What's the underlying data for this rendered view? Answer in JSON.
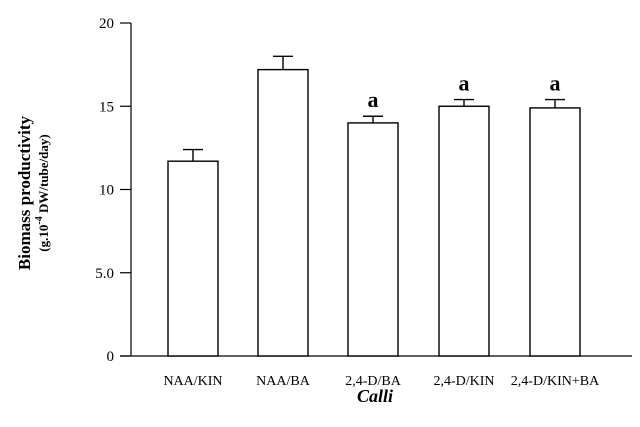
{
  "chart_data": {
    "type": "bar",
    "title": "",
    "xlabel": "Calli",
    "ylabel": "Biomass productivity",
    "ylabel_sub_prefix": "(g.10",
    "ylabel_sub_exp": "-4",
    "ylabel_sub_suffix": " DW/tube/day)",
    "ylim": [
      0,
      20
    ],
    "yticks": [
      {
        "value": 0,
        "label": "0"
      },
      {
        "value": 5,
        "label": "5.0"
      },
      {
        "value": 10,
        "label": "10"
      },
      {
        "value": 15,
        "label": "15"
      },
      {
        "value": 20,
        "label": "20"
      }
    ],
    "categories": [
      "NAA/KIN",
      "NAA/BA",
      "2,4-D/BA",
      "2,4-D/KIN",
      "2,4-D/KIN+BA"
    ],
    "values": [
      11.7,
      17.2,
      14.0,
      15.0,
      14.9
    ],
    "errors": [
      0.7,
      0.8,
      0.4,
      0.4,
      0.5
    ],
    "annotations": [
      "",
      "",
      "a",
      "a",
      "a"
    ],
    "grid": false,
    "bar_fill": "#ffffff",
    "bar_stroke": "#000000"
  }
}
